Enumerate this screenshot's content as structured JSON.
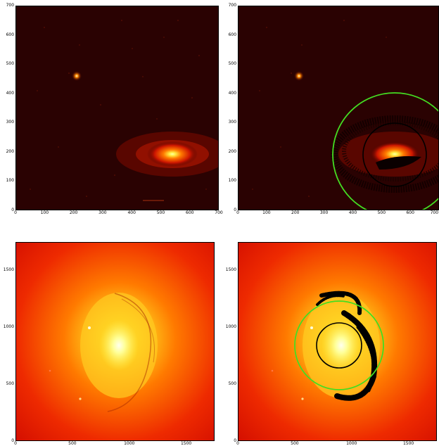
{
  "figure": {
    "panels": [
      {
        "id": "top-left",
        "xticks": [
          "0",
          "100",
          "200",
          "300",
          "400",
          "500",
          "600",
          "700"
        ],
        "yticks": [
          "0",
          "100",
          "200",
          "300",
          "400",
          "500",
          "600",
          "700"
        ],
        "overlay": false
      },
      {
        "id": "top-right",
        "xticks": [
          "0",
          "100",
          "200",
          "300",
          "400",
          "500",
          "600",
          "700"
        ],
        "yticks": [
          "0",
          "100",
          "200",
          "300",
          "400",
          "500",
          "600",
          "700"
        ],
        "overlay": true
      },
      {
        "id": "bottom-left",
        "xticks": [
          "0",
          "500",
          "1000",
          "1500"
        ],
        "yticks": [
          "0",
          "500",
          "1000",
          "1500"
        ],
        "overlay": false
      },
      {
        "id": "bottom-right",
        "xticks": [
          "0",
          "500",
          "1000",
          "1500"
        ],
        "yticks": [
          "0",
          "500",
          "1000",
          "1500"
        ],
        "overlay": true
      }
    ],
    "colors": {
      "outer_circle": "#44dd22",
      "inner_circle": "#000000",
      "frame": "#000000",
      "background": "#ffffff"
    }
  }
}
